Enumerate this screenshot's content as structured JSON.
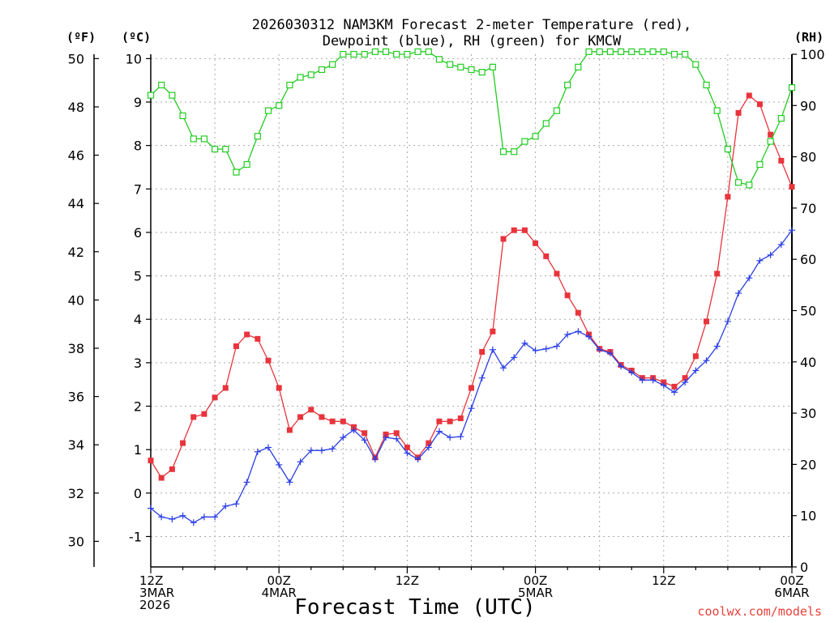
{
  "chart_data": {
    "type": "line",
    "title_line1": "2026030312 NAM3KM Forecast 2-meter Temperature (red),",
    "title_line2": "Dewpoint (blue), RH (green) for KMCW",
    "xlabel": "Forecast Time (UTC)",
    "credit": "coolwx.com/models",
    "axis_units": {
      "fahrenheit": "(ºF)",
      "celsius": "(ºC)",
      "rh": "(RH)"
    },
    "x_range_hours": [
      0,
      60
    ],
    "celsius_range": [
      -1.7,
      10.1
    ],
    "rh_range": [
      0,
      100
    ],
    "x_ticks": [
      {
        "hour": 0,
        "lines": [
          "12Z",
          "3MAR",
          "2026"
        ]
      },
      {
        "hour": 12,
        "lines": [
          "00Z",
          "4MAR"
        ]
      },
      {
        "hour": 24,
        "lines": [
          "12Z"
        ]
      },
      {
        "hour": 36,
        "lines": [
          "00Z",
          "5MAR"
        ]
      },
      {
        "hour": 48,
        "lines": [
          "12Z"
        ]
      },
      {
        "hour": 60,
        "lines": [
          "00Z",
          "6MAR"
        ]
      }
    ],
    "celsius_ticks": [
      "-1",
      "0",
      "1",
      "2",
      "3",
      "4",
      "5",
      "6",
      "7",
      "8",
      "9",
      "10"
    ],
    "fahrenheit_ticks": [
      "30",
      "32",
      "34",
      "36",
      "38",
      "40",
      "42",
      "44",
      "46",
      "48",
      "50"
    ],
    "rh_ticks": [
      "0",
      "10",
      "20",
      "30",
      "40",
      "50",
      "60",
      "70",
      "80",
      "90",
      "100"
    ],
    "series": [
      {
        "name": "Temperature",
        "unit": "C",
        "color": "#e8343c",
        "marker": "filled-square",
        "values": [
          0.75,
          0.35,
          0.55,
          1.15,
          1.75,
          1.82,
          2.2,
          2.42,
          3.38,
          3.65,
          3.55,
          3.05,
          2.42,
          1.45,
          1.75,
          1.92,
          1.75,
          1.65,
          1.65,
          1.52,
          1.38,
          0.82,
          1.35,
          1.38,
          1.05,
          0.82,
          1.15,
          1.65,
          1.65,
          1.72,
          2.42,
          3.25,
          3.72,
          5.85,
          6.05,
          6.05,
          5.75,
          5.45,
          5.05,
          4.55,
          4.15,
          3.65,
          3.32,
          3.25,
          2.95,
          2.82,
          2.65,
          2.65,
          2.55,
          2.45,
          2.65,
          3.15,
          3.95,
          5.05,
          6.82,
          8.75,
          9.15,
          8.95,
          8.25,
          7.65,
          7.05
        ]
      },
      {
        "name": "Dewpoint",
        "unit": "C",
        "color": "#2a3ee6",
        "marker": "plus",
        "values": [
          -0.35,
          -0.55,
          -0.6,
          -0.52,
          -0.68,
          -0.55,
          -0.55,
          -0.3,
          -0.25,
          0.25,
          0.95,
          1.05,
          0.65,
          0.25,
          0.72,
          0.98,
          0.98,
          1.02,
          1.28,
          1.45,
          1.22,
          0.78,
          1.28,
          1.25,
          0.92,
          0.78,
          1.05,
          1.42,
          1.28,
          1.3,
          1.95,
          2.65,
          3.3,
          2.88,
          3.12,
          3.45,
          3.28,
          3.32,
          3.38,
          3.65,
          3.72,
          3.6,
          3.3,
          3.22,
          2.92,
          2.78,
          2.6,
          2.6,
          2.48,
          2.32,
          2.55,
          2.82,
          3.05,
          3.38,
          3.95,
          4.6,
          4.95,
          5.35,
          5.48,
          5.72,
          6.05
        ]
      },
      {
        "name": "RH",
        "unit": "percent",
        "color": "#22cc22",
        "marker": "open-square",
        "values": [
          92,
          94,
          92,
          88,
          83.5,
          83.5,
          81.5,
          81.5,
          77,
          78.5,
          84,
          89,
          90,
          94,
          95.5,
          96,
          97,
          98,
          100,
          100,
          100,
          100.5,
          100.5,
          100,
          100,
          100.5,
          100.5,
          99,
          98,
          97.5,
          97,
          96.5,
          97.5,
          81,
          81,
          83,
          84,
          86.5,
          89,
          94,
          97.5,
          100.5,
          100.5,
          100.5,
          100.5,
          100.5,
          100.5,
          100.5,
          100.5,
          100,
          100,
          98,
          94,
          89,
          81.5,
          75,
          74.5,
          78.5,
          83,
          87.5,
          93.5
        ]
      }
    ]
  }
}
